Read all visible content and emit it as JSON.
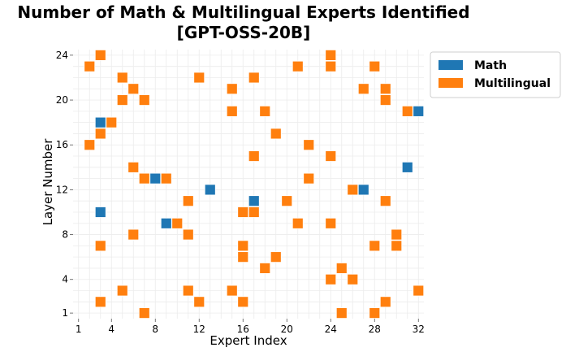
{
  "chart_data": {
    "type": "scatter",
    "title": [
      "Number of Math & Multilingual Experts Identified",
      "[GPT-OSS-20B]"
    ],
    "xlabel": "Expert Index",
    "ylabel": "Layer Number",
    "xlim": [
      0.5,
      32.5
    ],
    "ylim": [
      0.5,
      24.5
    ],
    "xticks": [
      1,
      4,
      8,
      12,
      16,
      20,
      24,
      28,
      32
    ],
    "yticks": [
      1,
      4,
      8,
      12,
      16,
      20,
      24
    ],
    "grid": true,
    "legend_position": "upper-right-outside",
    "series": [
      {
        "name": "Math",
        "color": "#1f77b4",
        "points": [
          {
            "x": 3,
            "y": 18
          },
          {
            "x": 32,
            "y": 19
          },
          {
            "x": 31,
            "y": 14
          },
          {
            "x": 8,
            "y": 13
          },
          {
            "x": 13,
            "y": 12
          },
          {
            "x": 27,
            "y": 12
          },
          {
            "x": 17,
            "y": 11
          },
          {
            "x": 3,
            "y": 10
          },
          {
            "x": 9,
            "y": 9
          }
        ]
      },
      {
        "name": "Multilingual",
        "color": "#ff7f0e",
        "points": [
          {
            "x": 3,
            "y": 24
          },
          {
            "x": 24,
            "y": 24
          },
          {
            "x": 2,
            "y": 23
          },
          {
            "x": 21,
            "y": 23
          },
          {
            "x": 24,
            "y": 23
          },
          {
            "x": 28,
            "y": 23
          },
          {
            "x": 5,
            "y": 22
          },
          {
            "x": 12,
            "y": 22
          },
          {
            "x": 17,
            "y": 22
          },
          {
            "x": 6,
            "y": 21
          },
          {
            "x": 15,
            "y": 21
          },
          {
            "x": 27,
            "y": 21
          },
          {
            "x": 29,
            "y": 21
          },
          {
            "x": 5,
            "y": 20
          },
          {
            "x": 7,
            "y": 20
          },
          {
            "x": 29,
            "y": 20
          },
          {
            "x": 15,
            "y": 19
          },
          {
            "x": 18,
            "y": 19
          },
          {
            "x": 31,
            "y": 19
          },
          {
            "x": 4,
            "y": 18
          },
          {
            "x": 3,
            "y": 17
          },
          {
            "x": 19,
            "y": 17
          },
          {
            "x": 2,
            "y": 16
          },
          {
            "x": 22,
            "y": 16
          },
          {
            "x": 17,
            "y": 15
          },
          {
            "x": 24,
            "y": 15
          },
          {
            "x": 6,
            "y": 14
          },
          {
            "x": 7,
            "y": 13
          },
          {
            "x": 9,
            "y": 13
          },
          {
            "x": 22,
            "y": 13
          },
          {
            "x": 26,
            "y": 12
          },
          {
            "x": 11,
            "y": 11
          },
          {
            "x": 20,
            "y": 11
          },
          {
            "x": 29,
            "y": 11
          },
          {
            "x": 16,
            "y": 10
          },
          {
            "x": 17,
            "y": 10
          },
          {
            "x": 10,
            "y": 9
          },
          {
            "x": 21,
            "y": 9
          },
          {
            "x": 24,
            "y": 9
          },
          {
            "x": 6,
            "y": 8
          },
          {
            "x": 11,
            "y": 8
          },
          {
            "x": 30,
            "y": 8
          },
          {
            "x": 3,
            "y": 7
          },
          {
            "x": 16,
            "y": 7
          },
          {
            "x": 28,
            "y": 7
          },
          {
            "x": 30,
            "y": 7
          },
          {
            "x": 16,
            "y": 6
          },
          {
            "x": 19,
            "y": 6
          },
          {
            "x": 18,
            "y": 5
          },
          {
            "x": 25,
            "y": 5
          },
          {
            "x": 24,
            "y": 4
          },
          {
            "x": 26,
            "y": 4
          },
          {
            "x": 5,
            "y": 3
          },
          {
            "x": 11,
            "y": 3
          },
          {
            "x": 15,
            "y": 3
          },
          {
            "x": 32,
            "y": 3
          },
          {
            "x": 3,
            "y": 2
          },
          {
            "x": 12,
            "y": 2
          },
          {
            "x": 16,
            "y": 2
          },
          {
            "x": 29,
            "y": 2
          },
          {
            "x": 7,
            "y": 1
          },
          {
            "x": 25,
            "y": 1
          },
          {
            "x": 28,
            "y": 1
          }
        ]
      }
    ]
  }
}
